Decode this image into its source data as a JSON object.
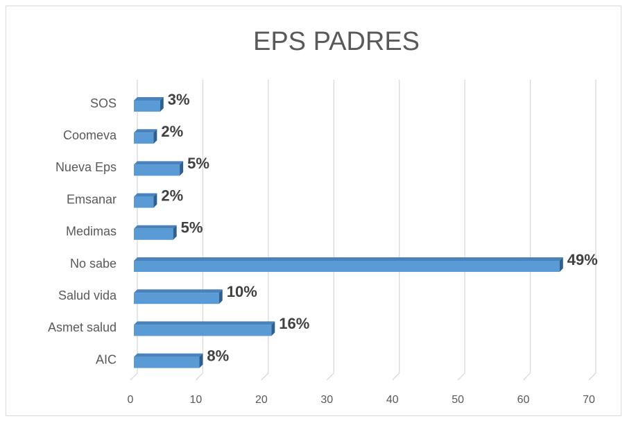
{
  "chart_data": {
    "type": "bar3d_horizontal",
    "title": "EPS PADRES",
    "categories": [
      "SOS",
      "Coomeva",
      "Nueva Eps",
      "Emsanar",
      "Medimas",
      "No sabe",
      "Salud vida",
      "Asmet salud",
      "AIC"
    ],
    "values": [
      4,
      3,
      7,
      3,
      6,
      65,
      13,
      21,
      10
    ],
    "percent_labels": [
      "3%",
      "2%",
      "5%",
      "2%",
      "5%",
      "49%",
      "10%",
      "16%",
      "8%"
    ],
    "color": "#5b9bd5",
    "xlim": [
      0,
      70
    ],
    "xticks": [
      0,
      10,
      20,
      30,
      40,
      50,
      60,
      70
    ],
    "grid": true
  }
}
